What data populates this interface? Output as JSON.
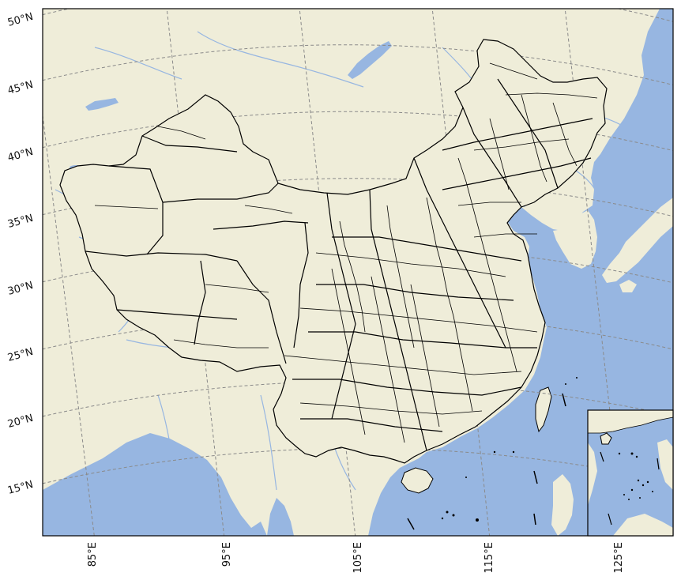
{
  "map": {
    "projection": "Lambert conformal conic",
    "colors": {
      "land": "#efedd9",
      "ocean": "#97b6e1",
      "rivers": "#97b6e1",
      "borders": "#000000",
      "gridlines": "#8a8a8a",
      "frame": "#000000",
      "label": "#111111"
    },
    "latitude_labels": [
      "50°N",
      "45°N",
      "40°N",
      "35°N",
      "30°N",
      "25°N",
      "20°N",
      "15°N"
    ],
    "longitude_labels": [
      "85°E",
      "95°E",
      "105°E",
      "115°E",
      "125°E"
    ],
    "inset": {
      "name": "South China Sea islands inset"
    }
  }
}
